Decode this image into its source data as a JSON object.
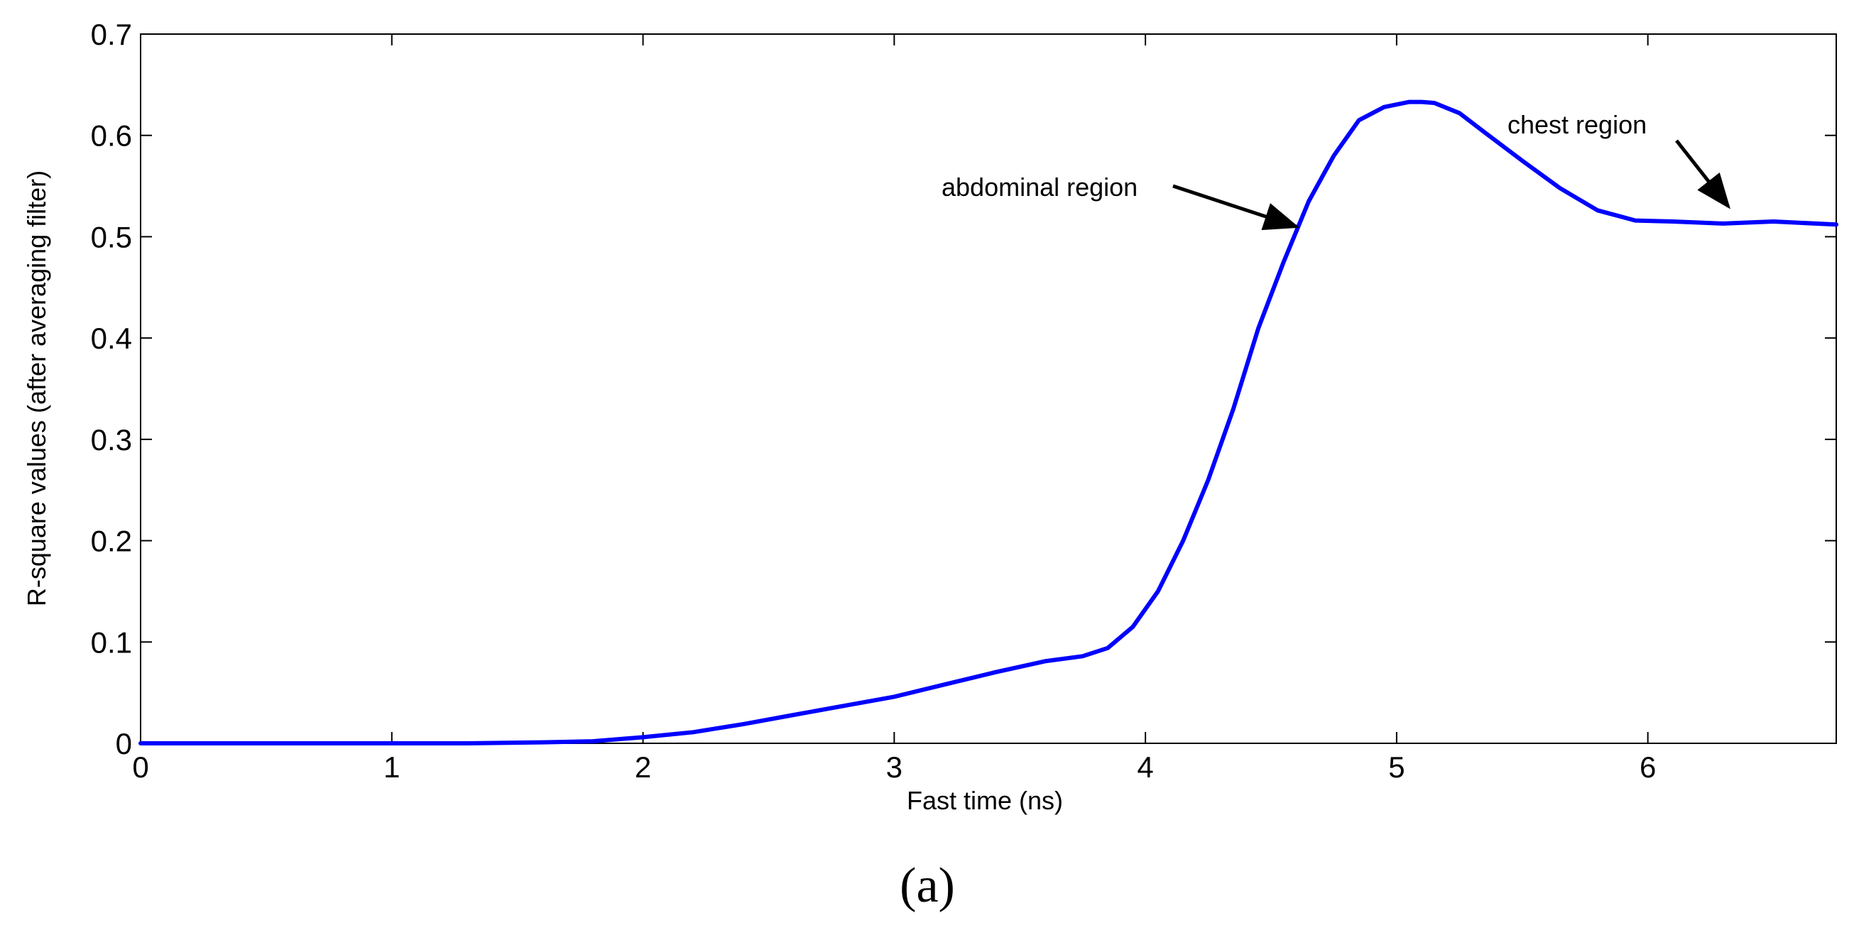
{
  "chart_data": {
    "type": "line",
    "title": "",
    "xlabel": "Fast time (ns)",
    "ylabel": "R-square values (after averaging filter)",
    "xlim": [
      0,
      6.75
    ],
    "ylim": [
      0,
      0.7
    ],
    "xticks": [
      0,
      1,
      2,
      3,
      4,
      5,
      6
    ],
    "xtick_labels": [
      "0",
      "1",
      "2",
      "3",
      "4",
      "5",
      "6"
    ],
    "yticks": [
      0,
      0.1,
      0.2,
      0.3,
      0.4,
      0.5,
      0.6,
      0.7
    ],
    "ytick_labels": [
      "0",
      "0.1",
      "0.2",
      "0.3",
      "0.4",
      "0.5",
      "0.6",
      "0.7"
    ],
    "grid": false,
    "series": [
      {
        "color": "#0000ff",
        "x": [
          0,
          0.5,
          1.0,
          1.3,
          1.6,
          1.8,
          2.0,
          2.2,
          2.4,
          2.6,
          2.8,
          3.0,
          3.2,
          3.4,
          3.6,
          3.75,
          3.85,
          3.95,
          4.05,
          4.15,
          4.25,
          4.35,
          4.45,
          4.55,
          4.65,
          4.75,
          4.85,
          4.95,
          5.05,
          5.1,
          5.15,
          5.25,
          5.35,
          5.5,
          5.65,
          5.8,
          5.95,
          6.1,
          6.3,
          6.5,
          6.75
        ],
        "y": [
          0,
          0,
          0,
          0,
          0.001,
          0.002,
          0.006,
          0.011,
          0.019,
          0.028,
          0.037,
          0.046,
          0.058,
          0.07,
          0.081,
          0.086,
          0.094,
          0.115,
          0.15,
          0.2,
          0.26,
          0.33,
          0.41,
          0.475,
          0.535,
          0.58,
          0.615,
          0.628,
          0.633,
          0.633,
          0.632,
          0.622,
          0.603,
          0.575,
          0.548,
          0.526,
          0.516,
          0.515,
          0.513,
          0.515,
          0.512
        ]
      }
    ],
    "annotations": [
      {
        "text": "abdominal region",
        "arrow_to": [
          4.6,
          0.51
        ]
      },
      {
        "text": "chest region",
        "arrow_to": [
          6.32,
          0.53
        ]
      }
    ]
  },
  "panel_label": "(a)"
}
